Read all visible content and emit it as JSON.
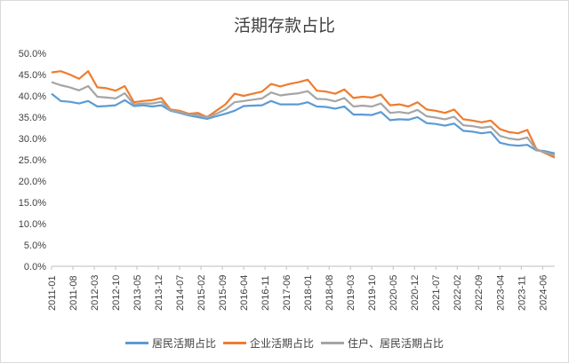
{
  "chart_data": {
    "type": "line",
    "title": "活期存款占比",
    "xlabel": "",
    "ylabel": "",
    "ylim": [
      0,
      50
    ],
    "yticks": [
      "0.0%",
      "5.0%",
      "10.0%",
      "15.0%",
      "20.0%",
      "25.0%",
      "30.0%",
      "35.0%",
      "40.0%",
      "45.0%",
      "50.0%"
    ],
    "xticks": [
      "2011-01",
      "2011-08",
      "2012-03",
      "2012-10",
      "2013-05",
      "2013-12",
      "2014-07",
      "2015-02",
      "2015-09",
      "2016-04",
      "2016-11",
      "2017-06",
      "2018-01",
      "2018-08",
      "2019-03",
      "2019-10",
      "2020-05",
      "2020-12",
      "2021-07",
      "2022-02",
      "2022-09",
      "2023-04",
      "2023-11",
      "2024-06"
    ],
    "legend_position": "bottom",
    "grid": false,
    "series": [
      {
        "name": "居民活期占比",
        "color": "#5b9bd5",
        "points": [
          [
            "2011-01",
            40.5
          ],
          [
            "2011-04",
            38.8
          ],
          [
            "2011-07",
            38.6
          ],
          [
            "2011-10",
            38.2
          ],
          [
            "2012-01",
            38.8
          ],
          [
            "2012-04",
            37.5
          ],
          [
            "2012-07",
            37.6
          ],
          [
            "2012-10",
            37.8
          ],
          [
            "2013-01",
            39.0
          ],
          [
            "2013-04",
            37.6
          ],
          [
            "2013-07",
            37.8
          ],
          [
            "2013-10",
            37.5
          ],
          [
            "2014-01",
            37.8
          ],
          [
            "2014-04",
            36.5
          ],
          [
            "2014-07",
            36.0
          ],
          [
            "2014-10",
            35.4
          ],
          [
            "2015-01",
            35.0
          ],
          [
            "2015-04",
            34.6
          ],
          [
            "2015-07",
            35.2
          ],
          [
            "2015-10",
            35.8
          ],
          [
            "2016-01",
            36.5
          ],
          [
            "2016-04",
            37.6
          ],
          [
            "2016-07",
            37.7
          ],
          [
            "2016-10",
            37.8
          ],
          [
            "2017-01",
            38.8
          ],
          [
            "2017-04",
            38.0
          ],
          [
            "2017-07",
            38.0
          ],
          [
            "2017-10",
            38.0
          ],
          [
            "2018-01",
            38.5
          ],
          [
            "2018-04",
            37.5
          ],
          [
            "2018-07",
            37.4
          ],
          [
            "2018-10",
            37.0
          ],
          [
            "2019-01",
            37.5
          ],
          [
            "2019-04",
            35.6
          ],
          [
            "2019-07",
            35.6
          ],
          [
            "2019-10",
            35.5
          ],
          [
            "2020-01",
            36.2
          ],
          [
            "2020-04",
            34.3
          ],
          [
            "2020-07",
            34.5
          ],
          [
            "2020-10",
            34.4
          ],
          [
            "2021-01",
            35.0
          ],
          [
            "2021-04",
            33.6
          ],
          [
            "2021-07",
            33.4
          ],
          [
            "2021-10",
            33.0
          ],
          [
            "2022-01",
            33.5
          ],
          [
            "2022-04",
            31.8
          ],
          [
            "2022-07",
            31.6
          ],
          [
            "2022-10",
            31.2
          ],
          [
            "2023-01",
            31.5
          ],
          [
            "2023-04",
            29.0
          ],
          [
            "2023-07",
            28.5
          ],
          [
            "2023-10",
            28.3
          ],
          [
            "2024-01",
            28.5
          ],
          [
            "2024-04",
            27.2
          ],
          [
            "2024-07",
            27.0
          ],
          [
            "2024-10",
            26.5
          ]
        ]
      },
      {
        "name": "企业活期占比",
        "color": "#ed7d31",
        "points": [
          [
            "2011-01",
            45.5
          ],
          [
            "2011-04",
            45.8
          ],
          [
            "2011-07",
            45.0
          ],
          [
            "2011-10",
            44.0
          ],
          [
            "2012-01",
            45.8
          ],
          [
            "2012-04",
            42.0
          ],
          [
            "2012-07",
            41.8
          ],
          [
            "2012-10",
            41.2
          ],
          [
            "2013-01",
            42.3
          ],
          [
            "2013-04",
            38.5
          ],
          [
            "2013-07",
            38.8
          ],
          [
            "2013-10",
            39.0
          ],
          [
            "2014-01",
            39.5
          ],
          [
            "2014-04",
            36.8
          ],
          [
            "2014-07",
            36.5
          ],
          [
            "2014-10",
            35.8
          ],
          [
            "2015-01",
            36.0
          ],
          [
            "2015-04",
            35.0
          ],
          [
            "2015-07",
            36.5
          ],
          [
            "2015-10",
            38.0
          ],
          [
            "2016-01",
            40.5
          ],
          [
            "2016-04",
            40.0
          ],
          [
            "2016-07",
            40.5
          ],
          [
            "2016-10",
            41.0
          ],
          [
            "2017-01",
            42.8
          ],
          [
            "2017-04",
            42.2
          ],
          [
            "2017-07",
            42.8
          ],
          [
            "2017-10",
            43.2
          ],
          [
            "2018-01",
            43.8
          ],
          [
            "2018-04",
            41.2
          ],
          [
            "2018-07",
            41.0
          ],
          [
            "2018-10",
            40.5
          ],
          [
            "2019-01",
            41.5
          ],
          [
            "2019-04",
            39.5
          ],
          [
            "2019-07",
            39.8
          ],
          [
            "2019-10",
            39.6
          ],
          [
            "2020-01",
            40.3
          ],
          [
            "2020-04",
            37.8
          ],
          [
            "2020-07",
            38.0
          ],
          [
            "2020-10",
            37.5
          ],
          [
            "2021-01",
            38.5
          ],
          [
            "2021-04",
            36.8
          ],
          [
            "2021-07",
            36.5
          ],
          [
            "2021-10",
            36.0
          ],
          [
            "2022-01",
            36.8
          ],
          [
            "2022-04",
            34.5
          ],
          [
            "2022-07",
            34.2
          ],
          [
            "2022-10",
            33.8
          ],
          [
            "2023-01",
            34.2
          ],
          [
            "2023-04",
            32.2
          ],
          [
            "2023-07",
            31.5
          ],
          [
            "2023-10",
            31.2
          ],
          [
            "2024-01",
            32.0
          ],
          [
            "2024-04",
            27.5
          ],
          [
            "2024-07",
            26.5
          ],
          [
            "2024-10",
            25.5
          ]
        ]
      },
      {
        "name": "住户、居民活期占比",
        "color": "#a5a5a5",
        "points": [
          [
            "2011-01",
            43.2
          ],
          [
            "2011-04",
            42.5
          ],
          [
            "2011-07",
            42.0
          ],
          [
            "2011-10",
            41.3
          ],
          [
            "2012-01",
            42.3
          ],
          [
            "2012-04",
            39.8
          ],
          [
            "2012-07",
            39.6
          ],
          [
            "2012-10",
            39.4
          ],
          [
            "2013-01",
            40.6
          ],
          [
            "2013-04",
            38.0
          ],
          [
            "2013-07",
            38.2
          ],
          [
            "2013-10",
            38.2
          ],
          [
            "2014-01",
            38.6
          ],
          [
            "2014-04",
            36.6
          ],
          [
            "2014-07",
            36.2
          ],
          [
            "2014-10",
            35.6
          ],
          [
            "2015-01",
            35.5
          ],
          [
            "2015-04",
            34.9
          ],
          [
            "2015-07",
            35.8
          ],
          [
            "2015-10",
            36.8
          ],
          [
            "2016-01",
            38.5
          ],
          [
            "2016-04",
            38.8
          ],
          [
            "2016-07",
            39.1
          ],
          [
            "2016-10",
            39.4
          ],
          [
            "2017-01",
            40.8
          ],
          [
            "2017-04",
            40.1
          ],
          [
            "2017-07",
            40.4
          ],
          [
            "2017-10",
            40.6
          ],
          [
            "2018-01",
            41.1
          ],
          [
            "2018-04",
            39.3
          ],
          [
            "2018-07",
            39.2
          ],
          [
            "2018-10",
            38.7
          ],
          [
            "2019-01",
            39.5
          ],
          [
            "2019-04",
            37.5
          ],
          [
            "2019-07",
            37.7
          ],
          [
            "2019-10",
            37.5
          ],
          [
            "2020-01",
            38.2
          ],
          [
            "2020-04",
            36.0
          ],
          [
            "2020-07",
            36.2
          ],
          [
            "2020-10",
            35.9
          ],
          [
            "2021-01",
            36.7
          ],
          [
            "2021-04",
            35.2
          ],
          [
            "2021-07",
            34.9
          ],
          [
            "2021-10",
            34.5
          ],
          [
            "2022-01",
            35.1
          ],
          [
            "2022-04",
            33.1
          ],
          [
            "2022-07",
            32.9
          ],
          [
            "2022-10",
            32.5
          ],
          [
            "2023-01",
            32.8
          ],
          [
            "2023-04",
            30.6
          ],
          [
            "2023-07",
            30.0
          ],
          [
            "2023-10",
            29.7
          ],
          [
            "2024-01",
            30.2
          ],
          [
            "2024-04",
            27.3
          ],
          [
            "2024-07",
            26.7
          ],
          [
            "2024-10",
            26.0
          ]
        ]
      }
    ]
  }
}
